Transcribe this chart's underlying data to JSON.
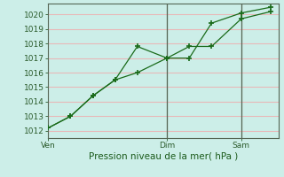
{
  "background_color": "#cceee8",
  "grid_color": "#e8b8b8",
  "line_color": "#1a6b1a",
  "marker_color": "#1a6b1a",
  "xlabel": "Pression niveau de la mer( hPa )",
  "ylim": [
    1011.5,
    1020.75
  ],
  "yticks": [
    1012,
    1013,
    1014,
    1015,
    1016,
    1017,
    1018,
    1019,
    1020
  ],
  "xtick_labels": [
    "Ven",
    "Dim",
    "Sam"
  ],
  "xtick_positions": [
    0,
    8,
    13
  ],
  "vline_color": "#556655",
  "series1_x": [
    0,
    1.5,
    3,
    4.5,
    6,
    8,
    9.5,
    11,
    13,
    15
  ],
  "series1_y": [
    1012.2,
    1013.0,
    1014.4,
    1015.5,
    1017.8,
    1017.0,
    1017.0,
    1019.4,
    1020.1,
    1020.5
  ],
  "series2_x": [
    0,
    1.5,
    3,
    4.5,
    6,
    8,
    9.5,
    11,
    13,
    15
  ],
  "series2_y": [
    1012.2,
    1013.0,
    1014.4,
    1015.5,
    1016.0,
    1017.0,
    1017.8,
    1017.8,
    1019.7,
    1020.2
  ],
  "xlim": [
    0,
    15.5
  ]
}
